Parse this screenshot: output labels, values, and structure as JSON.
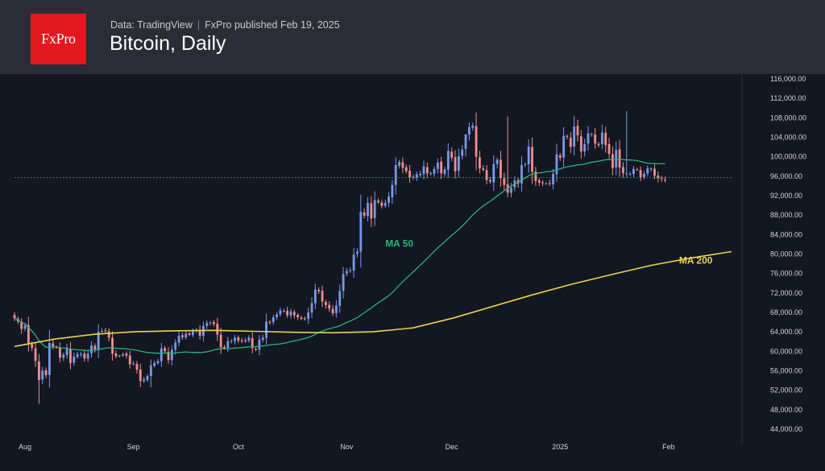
{
  "header": {
    "logo_text": "FxPro",
    "source": "Data: TradingView",
    "publisher": "FxPro published Feb 19, 2025",
    "title": "Bitcoin, Daily"
  },
  "chart_data": {
    "type": "candlestick",
    "title": "Bitcoin, Daily",
    "ylim": [
      42500,
      117000
    ],
    "y_ticks": [
      44000,
      48000,
      52000,
      56000,
      60000,
      64000,
      68000,
      72000,
      76000,
      80000,
      84000,
      88000,
      92000,
      96000,
      100000,
      104000,
      108000,
      112000,
      116000
    ],
    "y_tick_labels": [
      "44,000.00",
      "48,000.00",
      "52,000.00",
      "56,000.00",
      "60,000.00",
      "64,000.00",
      "68,000.00",
      "72,000.00",
      "76,000.00",
      "80,000.00",
      "84,000.00",
      "88,000.00",
      "92,000.00",
      "96,000.00",
      "100,000.00",
      "104,000.00",
      "108,000.00",
      "112,000.00",
      "116,000.00"
    ],
    "x_tick_labels": [
      {
        "date": "2024-08-01",
        "label": "Aug"
      },
      {
        "date": "2024-09-01",
        "label": "Sep"
      },
      {
        "date": "2024-10-01",
        "label": "Oct"
      },
      {
        "date": "2024-11-01",
        "label": "Nov"
      },
      {
        "date": "2024-12-01",
        "label": "Dec"
      },
      {
        "date": "2025-01-01",
        "label": "2025"
      },
      {
        "date": "2025-02-01",
        "label": "Feb"
      }
    ],
    "x_range": [
      "2024-07-29",
      "2025-02-19"
    ],
    "current_price_line": 95700,
    "colors": {
      "up": "#7b97e8",
      "down": "#ef8e8e",
      "ma50": "#26b37d",
      "ma200": "#e8d44a",
      "price_line": "#2e7d6b"
    },
    "closes": {
      "start": "2024-07-29",
      "values": [
        66800,
        66100,
        64600,
        65300,
        61500,
        60700,
        58000,
        54100,
        56000,
        55100,
        61700,
        60900,
        60800,
        58700,
        59300,
        60600,
        57600,
        58900,
        59400,
        59500,
        58500,
        59500,
        61200,
        60400,
        64000,
        64200,
        64100,
        62800,
        59500,
        59000,
        59100,
        59400,
        59100,
        57300,
        57500,
        56200,
        53900,
        54200,
        54900,
        57100,
        57600,
        58000,
        60600,
        60000,
        58200,
        60300,
        61800,
        63200,
        62900,
        63600,
        63400,
        64100,
        64400,
        63200,
        65200,
        65800,
        65900,
        65600,
        63400,
        60800,
        60600,
        62100,
        62100,
        62800,
        62200,
        62100,
        62300,
        62800,
        60600,
        60300,
        62400,
        62800,
        66100,
        66000,
        67000,
        67600,
        68400,
        68300,
        67400,
        68200,
        67400,
        67000,
        66700,
        66600,
        68000,
        69900,
        72700,
        72300,
        70200,
        69500,
        68800,
        67800,
        69400,
        72400,
        75900,
        76500,
        76700,
        79900,
        80500,
        88700,
        87900,
        90500,
        87300,
        91100,
        90600,
        89900,
        90500,
        91800,
        94200,
        98300,
        98900,
        97700,
        97000,
        95800,
        95900,
        96400,
        96500,
        98000,
        96600,
        96600,
        97500,
        98800,
        96600,
        97400,
        101200,
        99800,
        97000,
        100100,
        101500,
        104600,
        106100,
        106400,
        100000,
        97600,
        97300,
        95200,
        94900,
        98500,
        99400,
        95700,
        94200,
        92600,
        93600,
        95100,
        94500,
        98300,
        98500,
        102100,
        96900,
        95000,
        94700,
        94600,
        94500,
        94500,
        96500,
        100500,
        99800,
        104300,
        104100,
        102000,
        106200,
        104400,
        101100,
        102600,
        104800,
        104700,
        102700,
        102400,
        105000,
        102400,
        100600,
        97700,
        101400,
        97800,
        96600,
        96600,
        96500,
        97500,
        97400,
        95800,
        96500,
        97600,
        97600,
        96100,
        95600,
        95400,
        95200
      ]
    },
    "series": [
      {
        "name": "MA 50",
        "color": "#26b37d"
      },
      {
        "name": "MA 200",
        "color": "#e8d44a",
        "values": [
          61000,
          62500,
          63500,
          64000,
          64200,
          64300,
          64100,
          63900,
          63800,
          64000,
          64800,
          66800,
          69200,
          71600,
          73800,
          75800,
          77700,
          79200,
          80500
        ]
      }
    ],
    "annotations": [
      {
        "text": "MA 50",
        "date": "2024-11-12",
        "price": 81500,
        "color": "#26b37d"
      },
      {
        "text": "MA 200",
        "date": "2025-02-04",
        "price": 78000,
        "color": "#e8d44a"
      }
    ]
  }
}
